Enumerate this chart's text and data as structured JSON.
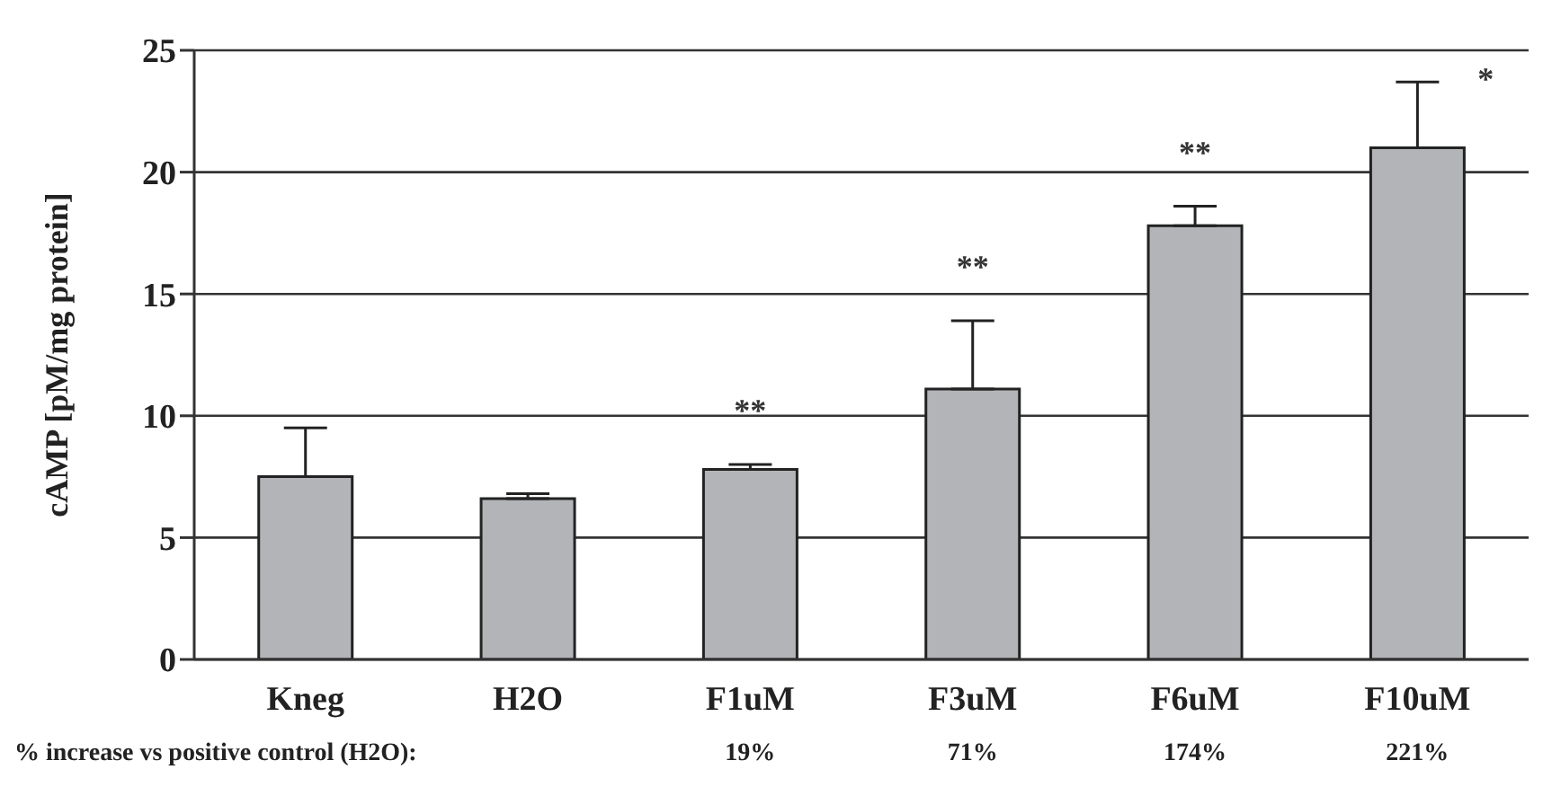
{
  "chart_data": {
    "type": "bar",
    "ylabel": "cAMP [pM/mg protein]",
    "categories": [
      "Kneg",
      "H2O",
      "F1uM",
      "F3uM",
      "F6uM",
      "F10uM"
    ],
    "values": [
      7.5,
      6.6,
      7.8,
      11.1,
      17.8,
      21.0
    ],
    "errors": [
      [
        7.5,
        9.5
      ],
      [
        6.6,
        6.8
      ],
      [
        7.8,
        8.0
      ],
      [
        11.1,
        13.9
      ],
      [
        17.8,
        18.6
      ],
      [
        21.0,
        23.7
      ]
    ],
    "color": "#b3b4b8",
    "ylim": [
      0,
      25
    ],
    "yticks": [
      0,
      5,
      10,
      15,
      20,
      25
    ],
    "grid": "y",
    "legend": false,
    "annotations": [
      "% increase vs positive control (H2O):",
      "**",
      "**",
      "**",
      "*",
      "19%",
      "71%",
      "174%",
      "221%"
    ]
  }
}
